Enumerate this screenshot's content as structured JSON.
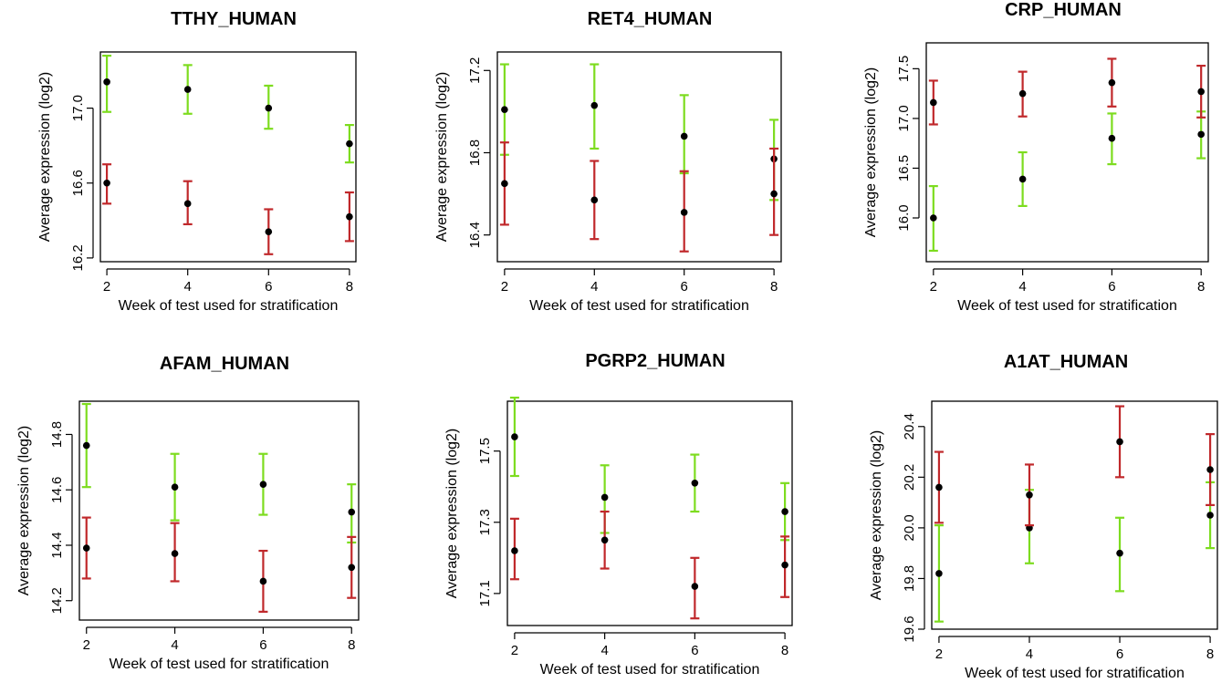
{
  "colors": {
    "group_a": "#7ddc1f",
    "group_b": "#c0282b",
    "point": "#000000"
  },
  "chart_data": [
    {
      "type": "scatter",
      "title": "TTHY_HUMAN",
      "xlabel": "Week of test used for stratification",
      "ylabel": "Average expression (log2)",
      "x": [
        2,
        4,
        6,
        8
      ],
      "xticks": [
        "2",
        "4",
        "6",
        "8"
      ],
      "yticks": [
        "16.2",
        "16.6",
        "17.0"
      ],
      "xlim": [
        1.84,
        8.16
      ],
      "ylim": [
        16.18,
        17.3
      ],
      "series": [
        {
          "color": "group_a",
          "mean": [
            17.14,
            17.1,
            17.0,
            16.81
          ],
          "lower": [
            16.98,
            16.97,
            16.89,
            16.71
          ],
          "upper": [
            17.28,
            17.23,
            17.12,
            16.91
          ]
        },
        {
          "color": "group_b",
          "mean": [
            16.6,
            16.49,
            16.34,
            16.42
          ],
          "lower": [
            16.49,
            16.38,
            16.22,
            16.29
          ],
          "upper": [
            16.7,
            16.61,
            16.46,
            16.55
          ]
        }
      ]
    },
    {
      "type": "scatter",
      "title": "RET4_HUMAN",
      "xlabel": "Week of test used for stratification",
      "ylabel": "Average expression (log2)",
      "x": [
        2,
        4,
        6,
        8
      ],
      "xticks": [
        "2",
        "4",
        "6",
        "8"
      ],
      "yticks": [
        "16.4",
        "16.8",
        "17.2"
      ],
      "xlim": [
        1.84,
        8.16
      ],
      "ylim": [
        16.27,
        17.29
      ],
      "series": [
        {
          "color": "group_a",
          "mean": [
            17.01,
            17.03,
            16.88,
            16.77
          ],
          "lower": [
            16.79,
            16.82,
            16.7,
            16.57
          ],
          "upper": [
            17.23,
            17.23,
            17.08,
            16.96
          ]
        },
        {
          "color": "group_b",
          "mean": [
            16.65,
            16.57,
            16.51,
            16.6
          ],
          "lower": [
            16.45,
            16.38,
            16.32,
            16.4
          ],
          "upper": [
            16.85,
            16.76,
            16.71,
            16.82
          ]
        }
      ]
    },
    {
      "type": "scatter",
      "title": "CRP_HUMAN",
      "xlabel": "Week of test used for stratification",
      "ylabel": "Average expression (log2)",
      "x": [
        2,
        4,
        6,
        8
      ],
      "xticks": [
        "2",
        "4",
        "6",
        "8"
      ],
      "yticks": [
        "16.0",
        "16.5",
        "17.0",
        "17.5"
      ],
      "xlim": [
        1.84,
        8.16
      ],
      "ylim": [
        15.56,
        17.76
      ],
      "series": [
        {
          "color": "group_a",
          "mean": [
            16.0,
            16.39,
            16.8,
            16.84
          ],
          "lower": [
            15.67,
            16.12,
            16.54,
            16.6
          ],
          "upper": [
            16.32,
            16.66,
            17.05,
            17.07
          ]
        },
        {
          "color": "group_b",
          "mean": [
            17.16,
            17.25,
            17.36,
            17.27
          ],
          "lower": [
            16.94,
            17.02,
            17.12,
            17.01
          ],
          "upper": [
            17.38,
            17.47,
            17.6,
            17.53
          ]
        }
      ]
    },
    {
      "type": "scatter",
      "title": "AFAM_HUMAN",
      "xlabel": "Week of test used for stratification",
      "ylabel": "Average expression (log2)",
      "x": [
        2,
        4,
        6,
        8
      ],
      "xticks": [
        "2",
        "4",
        "6",
        "8"
      ],
      "yticks": [
        "14.2",
        "14.4",
        "14.6",
        "14.8"
      ],
      "xlim": [
        1.84,
        8.16
      ],
      "ylim": [
        14.13,
        14.92
      ],
      "series": [
        {
          "color": "group_a",
          "mean": [
            14.76,
            14.61,
            14.62,
            14.52
          ],
          "lower": [
            14.61,
            14.49,
            14.51,
            14.41
          ],
          "upper": [
            14.91,
            14.73,
            14.73,
            14.62
          ]
        },
        {
          "color": "group_b",
          "mean": [
            14.39,
            14.37,
            14.27,
            14.32
          ],
          "lower": [
            14.28,
            14.27,
            14.16,
            14.21
          ],
          "upper": [
            14.5,
            14.48,
            14.38,
            14.43
          ]
        }
      ]
    },
    {
      "type": "scatter",
      "title": "PGRP2_HUMAN",
      "xlabel": "Week of test used for stratification",
      "ylabel": "Average expression (log2)",
      "x": [
        2,
        4,
        6,
        8
      ],
      "xticks": [
        "2",
        "4",
        "6",
        "8"
      ],
      "yticks": [
        "17.1",
        "17.3",
        "17.5"
      ],
      "xlim": [
        1.84,
        8.16
      ],
      "ylim": [
        17.01,
        17.64
      ],
      "series": [
        {
          "color": "group_a",
          "mean": [
            17.54,
            17.37,
            17.41,
            17.33
          ],
          "lower": [
            17.43,
            17.27,
            17.33,
            17.25
          ],
          "upper": [
            17.65,
            17.46,
            17.49,
            17.41
          ]
        },
        {
          "color": "group_b",
          "mean": [
            17.22,
            17.25,
            17.12,
            17.18
          ],
          "lower": [
            17.14,
            17.17,
            17.03,
            17.09
          ],
          "upper": [
            17.31,
            17.33,
            17.2,
            17.26
          ]
        }
      ]
    },
    {
      "type": "scatter",
      "title": "A1AT_HUMAN",
      "xlabel": "Week of test used for stratification",
      "ylabel": "Average expression (log2)",
      "x": [
        2,
        4,
        6,
        8
      ],
      "xticks": [
        "2",
        "4",
        "6",
        "8"
      ],
      "yticks": [
        "19.6",
        "19.8",
        "20.0",
        "20.2",
        "20.4"
      ],
      "xlim": [
        1.84,
        8.16
      ],
      "ylim": [
        19.6,
        20.5
      ],
      "series": [
        {
          "color": "group_a",
          "mean": [
            19.82,
            20.0,
            19.9,
            20.05
          ],
          "lower": [
            19.63,
            19.86,
            19.75,
            19.92
          ],
          "upper": [
            20.01,
            20.15,
            20.04,
            20.18
          ]
        },
        {
          "color": "group_b",
          "mean": [
            20.16,
            20.13,
            20.34,
            20.23
          ],
          "lower": [
            20.02,
            20.01,
            20.2,
            20.09
          ],
          "upper": [
            20.3,
            20.25,
            20.48,
            20.37
          ]
        }
      ]
    }
  ]
}
